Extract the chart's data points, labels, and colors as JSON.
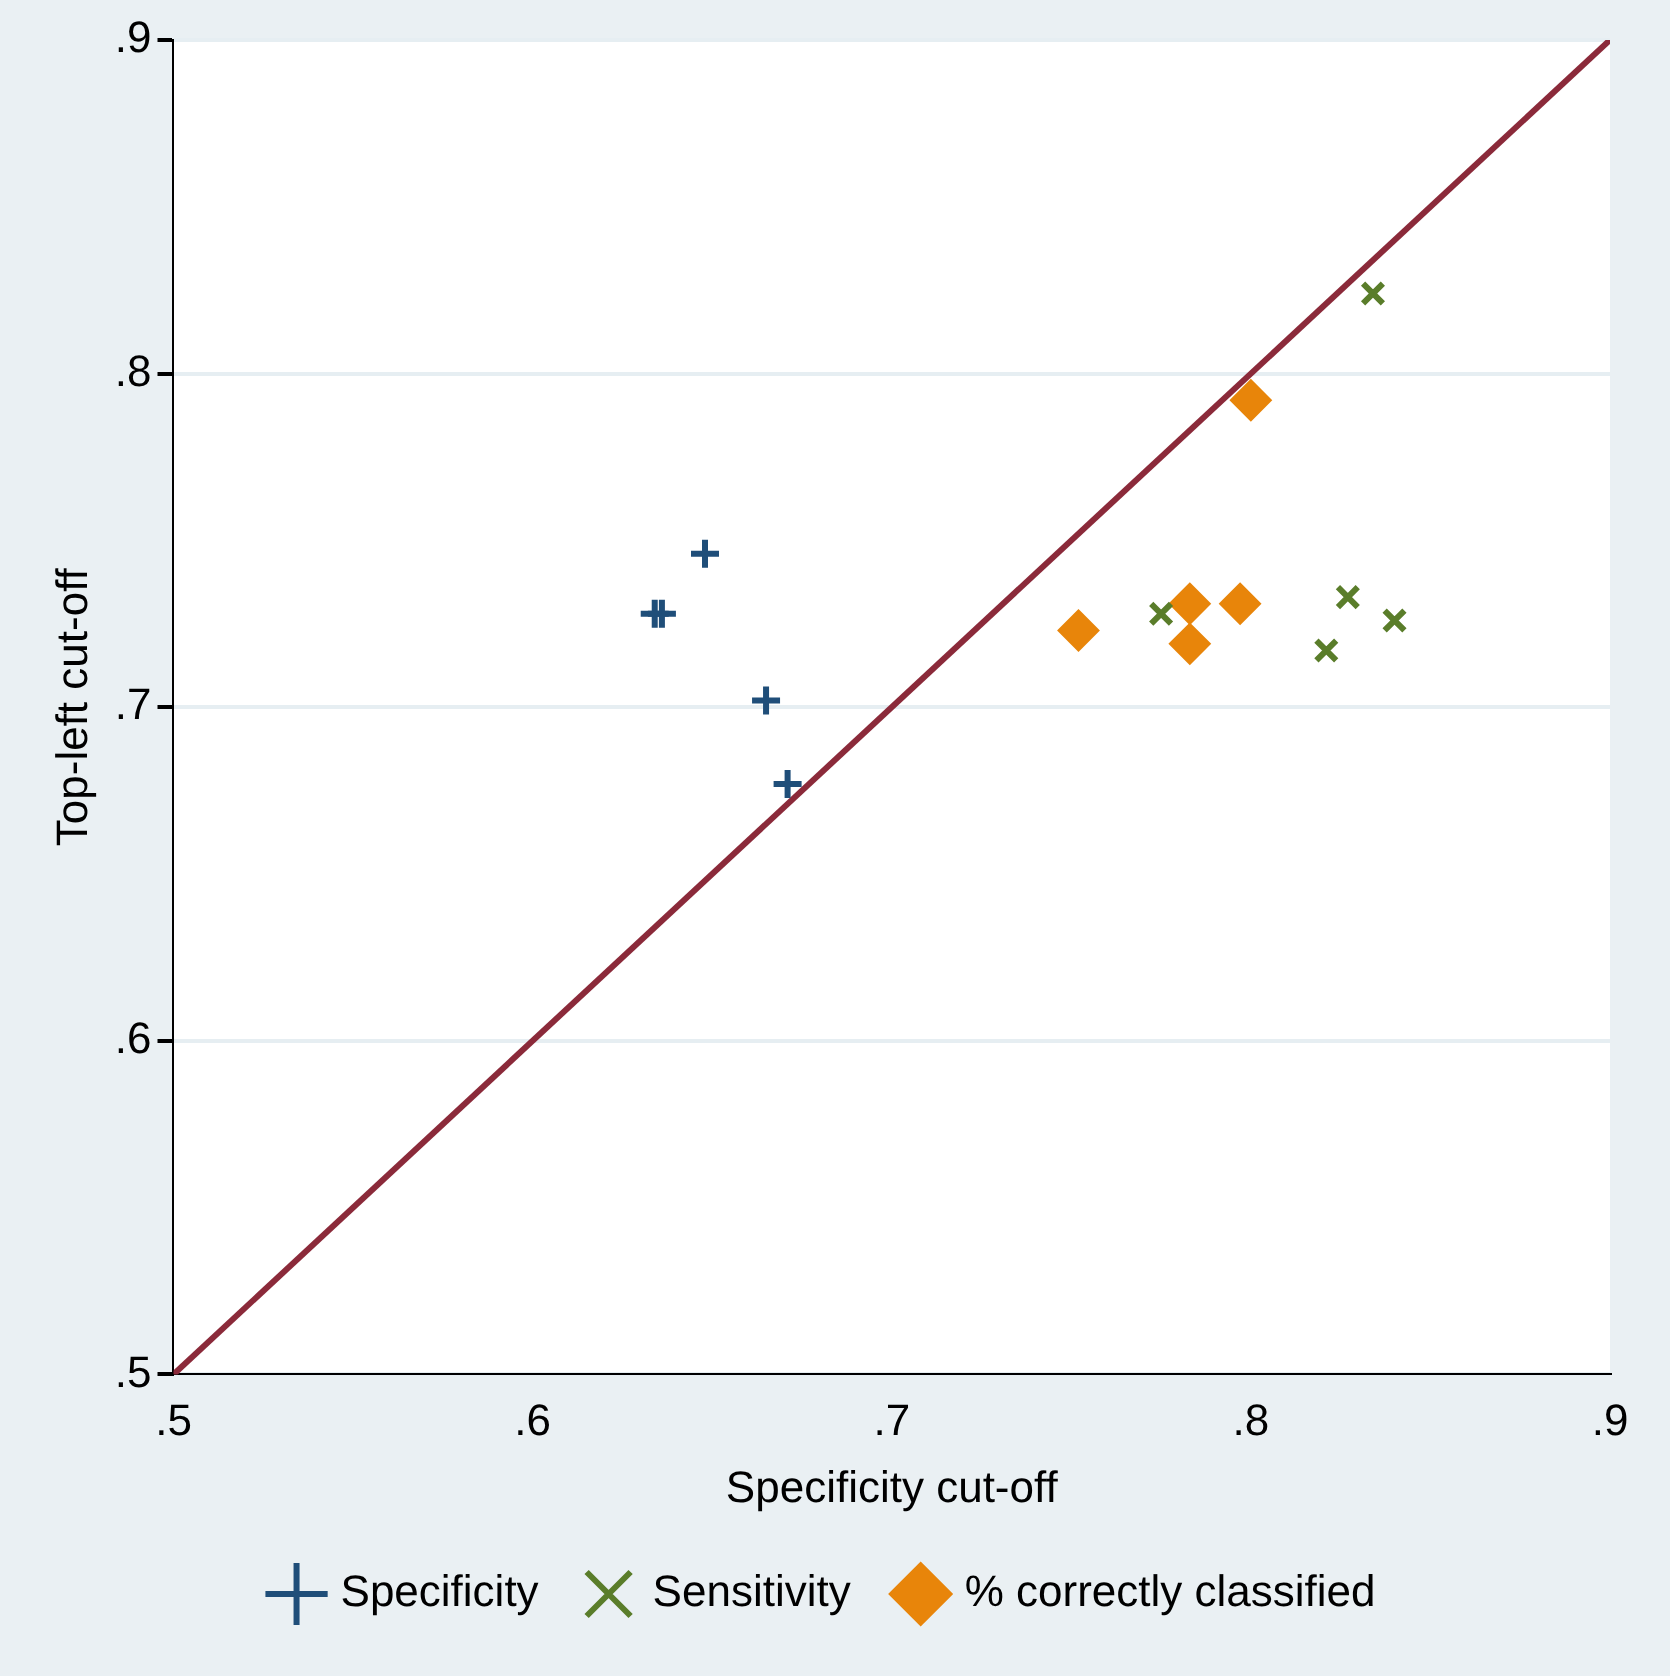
{
  "chart_data": {
    "type": "scatter",
    "xlabel": "Specificity cut-off",
    "ylabel": "Top-left cut-off",
    "xlim": [
      0.5,
      0.9
    ],
    "ylim": [
      0.5,
      0.9
    ],
    "xticks": [
      {
        "value": 0.5,
        "label": ".5"
      },
      {
        "value": 0.6,
        "label": ".6"
      },
      {
        "value": 0.7,
        "label": ".7"
      },
      {
        "value": 0.8,
        "label": ".8"
      },
      {
        "value": 0.9,
        "label": ".9"
      }
    ],
    "yticks": [
      {
        "value": 0.5,
        "label": ".5"
      },
      {
        "value": 0.6,
        "label": ".6"
      },
      {
        "value": 0.7,
        "label": ".7"
      },
      {
        "value": 0.8,
        "label": ".8"
      },
      {
        "value": 0.9,
        "label": ".9"
      }
    ],
    "grid": "y",
    "legend": "bottom",
    "series": [
      {
        "name": "Specificity",
        "marker": "cross",
        "color": "#1f4e79",
        "x": [
          0.648,
          0.634,
          0.636,
          0.665,
          0.671
        ],
        "values": [
          0.746,
          0.728,
          0.728,
          0.702,
          0.677
        ]
      },
      {
        "name": "Sensitivity",
        "marker": "x",
        "color": "#5a7d2a",
        "x": [
          0.834,
          0.775,
          0.827,
          0.821,
          0.84
        ],
        "values": [
          0.824,
          0.728,
          0.733,
          0.717,
          0.726
        ]
      },
      {
        "name": "% correctly classified",
        "marker": "diamond",
        "color": "#e8850a",
        "x": [
          0.8,
          0.752,
          0.783,
          0.783,
          0.797
        ],
        "values": [
          0.792,
          0.723,
          0.731,
          0.719,
          0.731
        ]
      },
      {
        "type": "line",
        "marker": "none",
        "color": "#8b2a3a",
        "x": [
          0.5,
          0.9
        ],
        "values": [
          0.5,
          0.9
        ]
      }
    ]
  }
}
